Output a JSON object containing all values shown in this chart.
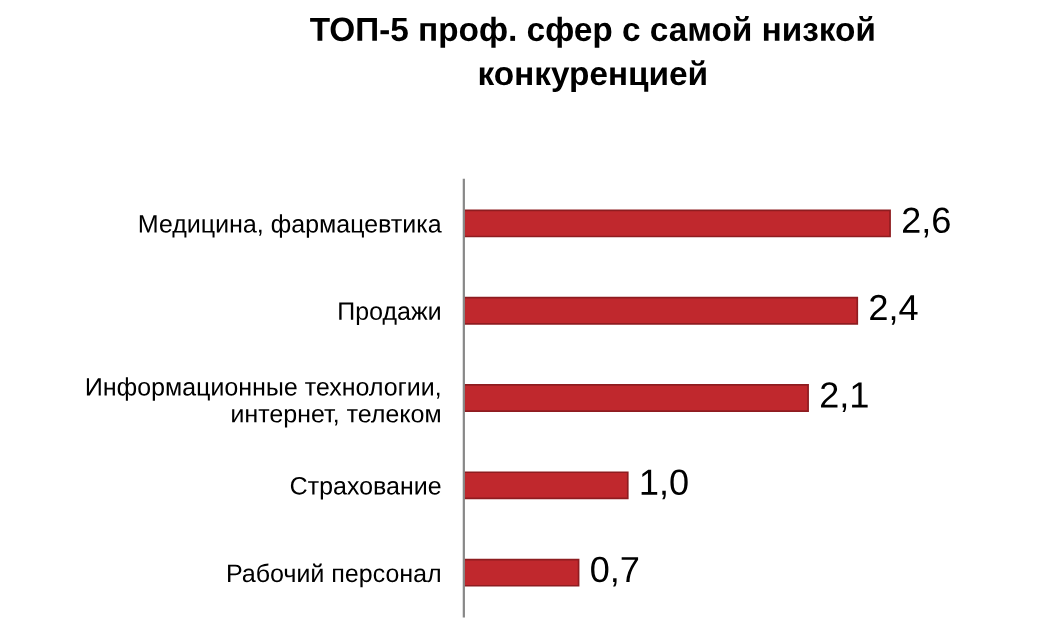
{
  "chart_data": {
    "type": "bar",
    "orientation": "horizontal",
    "title": "ТОП-5 проф. сфер с самой низкой\nконкуренцией",
    "categories": [
      "Медицина, фармацевтика",
      "Продажи",
      "Информационные технологии,\nинтернет, телеком",
      "Страхование",
      "Рабочий персонал"
    ],
    "values": [
      2.6,
      2.4,
      2.1,
      1.0,
      0.7
    ],
    "value_labels": [
      "2,6",
      "2,4",
      "2,1",
      "1,0",
      "0,7"
    ],
    "color": "#c0282d",
    "grid": false,
    "legend": false
  }
}
